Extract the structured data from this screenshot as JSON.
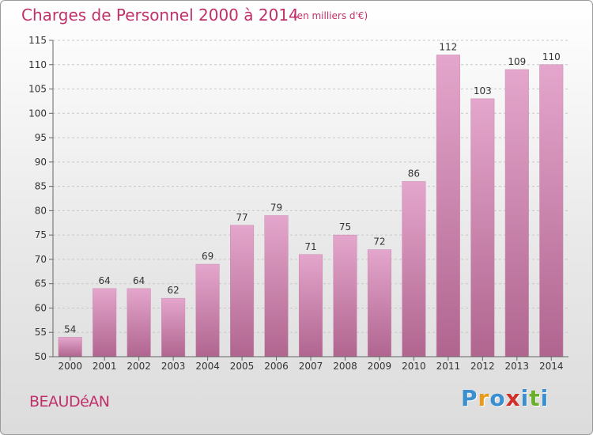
{
  "header": {
    "title": "Charges de Personnel 2000 à 2014",
    "subtitle": "(en milliers d'€)"
  },
  "footer": {
    "place": "BEAUDéAN",
    "logo": {
      "letters": [
        "P",
        "r",
        "o",
        "x",
        "i",
        "t",
        "i"
      ],
      "colors": [
        "#3a8fd0",
        "#e89a1a",
        "#3a8fd0",
        "#d0302a",
        "#3a8fd0",
        "#6ab02a",
        "#3a8fd0"
      ]
    }
  },
  "chart_data": {
    "type": "bar",
    "title": "Charges de Personnel 2000 à 2014",
    "subtitle": "(en milliers d'€)",
    "categories": [
      "2000",
      "2001",
      "2002",
      "2003",
      "2004",
      "2005",
      "2006",
      "2007",
      "2008",
      "2009",
      "2010",
      "2011",
      "2012",
      "2013",
      "2014"
    ],
    "values": [
      54,
      64,
      64,
      62,
      69,
      77,
      79,
      71,
      75,
      72,
      86,
      112,
      103,
      109,
      110
    ],
    "data_labels": [
      "54",
      "64",
      "64",
      "62",
      "69",
      "77",
      "79",
      "71",
      "75",
      "72",
      "86",
      "112",
      "103",
      "109",
      "110"
    ],
    "y_ticks": [
      "50",
      "55",
      "60",
      "65",
      "70",
      "75",
      "80",
      "85",
      "90",
      "95",
      "100",
      "105",
      "110",
      "115"
    ],
    "ylim": [
      50,
      115
    ],
    "grid": true,
    "bar_color_top": "#e4a6cc",
    "bar_color_bottom": "#b0658f"
  }
}
